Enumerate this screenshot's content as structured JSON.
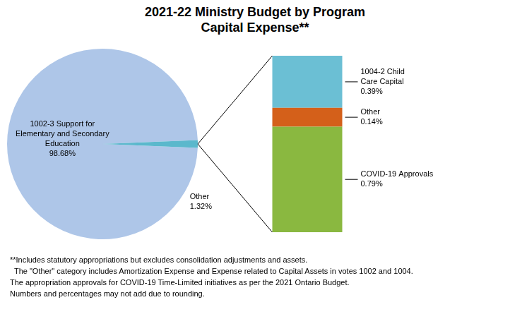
{
  "chart_data": [
    {
      "type": "pie",
      "title": "2021-22 Ministry Budget by Program\nCapital Expense**",
      "categories": [
        "1002-3 Support for\nElementary and Secondary\nEducation",
        "Other"
      ],
      "values": [
        98.68,
        1.32
      ],
      "value_labels": [
        "98.68%",
        "1.32%"
      ],
      "colors": [
        "#aec6e8",
        "#5bb8cc"
      ],
      "data_labels": true,
      "annotations": [
        "**Includes statutory appropriations but excludes consolidation adjustments and assets.",
        "  The \"Other\" category includes Amortization Expense and Expense related to Capital Assets in votes 1002 and 1004.",
        "The appropriation approvals for COVID-19 Time-Limited initiatives as per the 2021 Ontario Budget.",
        "Numbers and percentages may not add due to rounding."
      ]
    },
    {
      "type": "bar",
      "stacked": true,
      "categories": [
        null
      ],
      "series": [
        {
          "name": "COVID-19 Approvals",
          "color": "#8ab840",
          "values": [
            0.79
          ],
          "value_labels": [
            "0.79%"
          ]
        },
        {
          "name": "Other",
          "color": "#d4601a",
          "values": [
            0.14
          ],
          "value_labels": [
            "0.14%"
          ]
        },
        {
          "name": "1004-2 Child\nCare Capital",
          "color": "#6bbfd4",
          "values": [
            0.39
          ],
          "value_labels": [
            "0.39%"
          ]
        }
      ],
      "ylim": [
        0,
        1.32
      ],
      "tick_labels": false,
      "data_labels": true
    }
  ]
}
